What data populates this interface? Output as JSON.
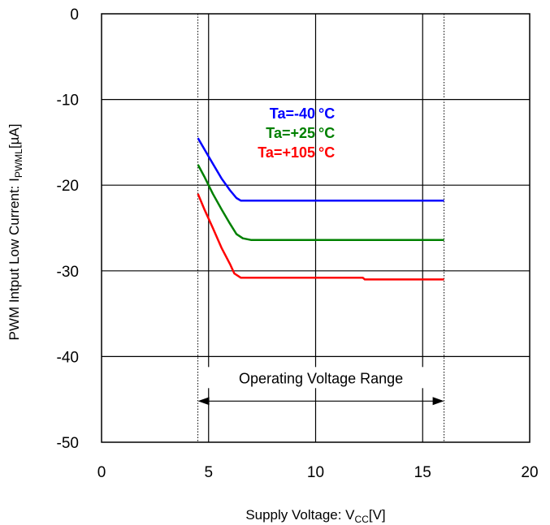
{
  "chart_data": {
    "type": "line",
    "xlabel": {
      "main": "Supply Voltage: V",
      "sub": "CC",
      "unit": "[V]"
    },
    "ylabel": {
      "main": "PWM Intput Low Current: I",
      "sub": "PWML",
      "unit": "[µA]"
    },
    "xlim": [
      0,
      20
    ],
    "ylim": [
      -50,
      0
    ],
    "xticks": [
      0,
      5,
      10,
      15,
      20
    ],
    "yticks": [
      0,
      -10,
      -20,
      -30,
      -40,
      -50
    ],
    "grid": true,
    "legend_position": "top-center",
    "series": [
      {
        "name": "Ta=-40",
        "unit": "°C",
        "color": "#0000ff",
        "x": [
          4.5,
          4.8,
          5.2,
          5.6,
          6.0,
          6.3,
          6.5,
          8,
          10,
          12,
          14,
          16
        ],
        "y": [
          -14.5,
          -15.8,
          -17.5,
          -19.2,
          -20.6,
          -21.5,
          -21.8,
          -21.8,
          -21.8,
          -21.8,
          -21.8,
          -21.8
        ]
      },
      {
        "name": "Ta=+25",
        "unit": "°C",
        "color": "#008000",
        "x": [
          4.5,
          4.8,
          5.2,
          5.6,
          6.0,
          6.3,
          6.6,
          7.0,
          8,
          10,
          12,
          14,
          16
        ],
        "y": [
          -17.6,
          -19.0,
          -21.0,
          -22.8,
          -24.5,
          -25.7,
          -26.2,
          -26.4,
          -26.4,
          -26.4,
          -26.4,
          -26.4,
          -26.4
        ]
      },
      {
        "name": "Ta=+105",
        "unit": "°C",
        "color": "#ff0000",
        "x": [
          4.5,
          4.8,
          5.2,
          5.6,
          6.0,
          6.2,
          6.5,
          7,
          8,
          10,
          12.2,
          12.3,
          14,
          16
        ],
        "y": [
          -21.0,
          -22.8,
          -25.0,
          -27.3,
          -29.2,
          -30.3,
          -30.8,
          -30.8,
          -30.8,
          -30.8,
          -30.8,
          -31.0,
          -31.0,
          -31.0
        ]
      }
    ],
    "reference_lines": {
      "x": [
        4.5,
        16
      ]
    },
    "annotation": {
      "text": "Operating Voltage Range",
      "x_from": 4.5,
      "x_to": 16,
      "y": -45.2
    }
  }
}
